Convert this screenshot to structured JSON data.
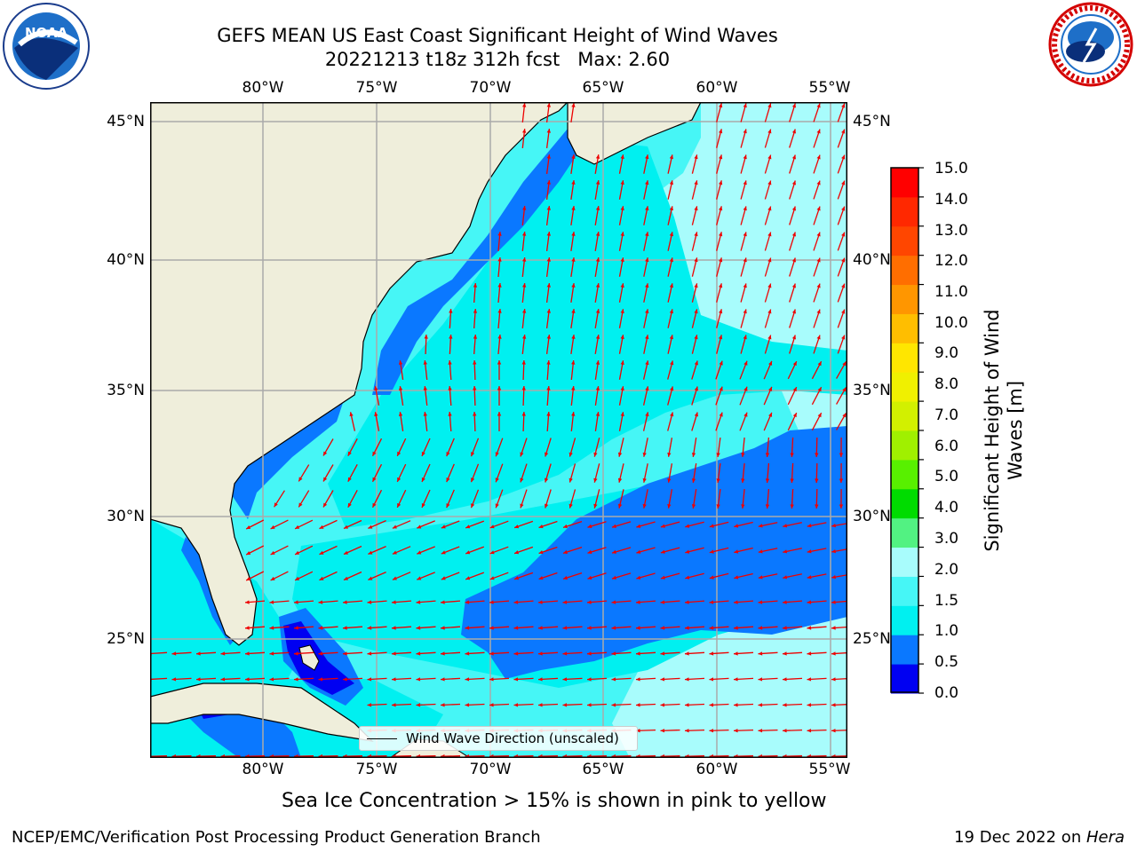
{
  "title": {
    "line1": "GEFS MEAN US East Coast Significant Height of Wind Waves",
    "line2": "20221213 t18z 312h fcst   Max: 2.60"
  },
  "logos": {
    "noaa_text": "NOAA",
    "noaa_ring_text": "NATIONAL OCEANIC AND ATMOSPHERIC ADMINISTRATION • U.S. DEPARTMENT OF COMMERCE",
    "nws_ring_text": "NATIONAL WEATHER SERVICE"
  },
  "map": {
    "lon_labels": [
      "80°W",
      "75°W",
      "70°W",
      "65°W",
      "60°W",
      "55°W"
    ],
    "lat_labels": [
      "45°N",
      "40°N",
      "35°N",
      "30°N",
      "25°N"
    ],
    "legend_label": "Wind Wave Direction (unscaled)",
    "colors": {
      "land": "#efeedb",
      "sea_0_0p5": "#0000f2",
      "sea_0p5_1": "#0a78ff",
      "sea_1_1p5": "#00f0f0",
      "sea_1p5_2": "#46f6f6",
      "sea_2_3": "#a8fcfc",
      "arrow": "#ee0000",
      "grid": "#aaaaaa"
    }
  },
  "colorbar": {
    "label": "Significant Height of Wind\nWaves [m]",
    "label_line1": "Significant Height of Wind",
    "label_line2": "Waves [m]",
    "ticks": [
      "15.0",
      "14.0",
      "13.0",
      "12.0",
      "11.0",
      "10.0",
      "9.0",
      "8.0",
      "7.0",
      "6.0",
      "5.0",
      "4.0",
      "3.0",
      "2.0",
      "1.5",
      "1.0",
      "0.5",
      "0.0"
    ],
    "colors": [
      "#0000f2",
      "#0a78ff",
      "#00f0f0",
      "#46f6f6",
      "#a8fcfc",
      "#52f282",
      "#00dc00",
      "#58f000",
      "#a0f000",
      "#d2f000",
      "#f0f000",
      "#ffe600",
      "#ffbe00",
      "#ff9600",
      "#ff6e00",
      "#ff4600",
      "#ff2800",
      "#ff0000"
    ]
  },
  "subtitle": "Sea Ice Concentration > 15% is shown in pink to yellow",
  "footer": {
    "left": "NCEP/EMC/Verification Post Processing Product Generation Branch",
    "right_prefix": "19 Dec 2022 on ",
    "right_host": "Hera"
  }
}
